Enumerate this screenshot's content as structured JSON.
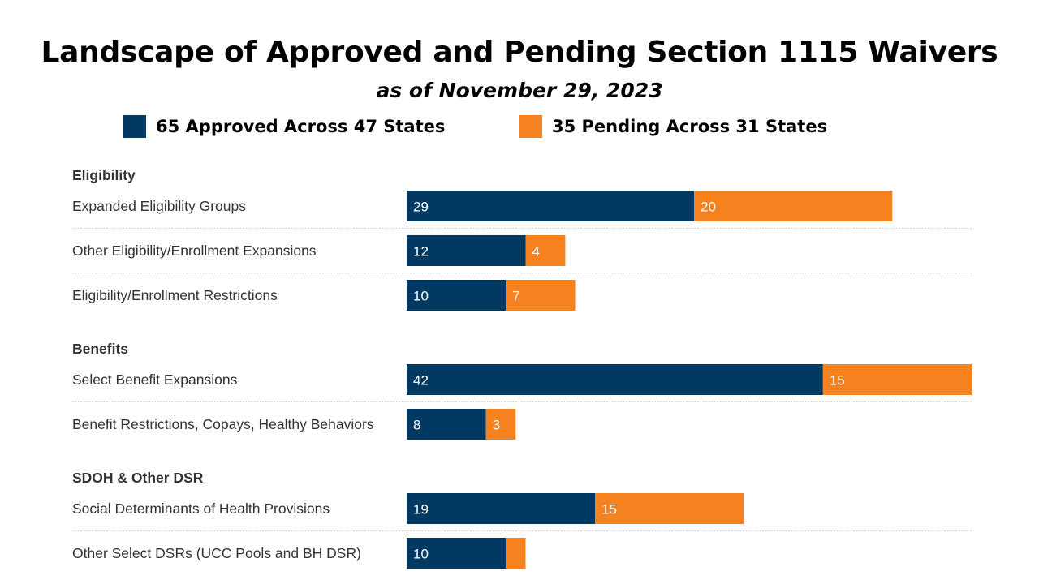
{
  "title": "Landscape of Approved and Pending Section 1115 Waivers",
  "subtitle": "as of November 29, 2023",
  "legend": {
    "approved": {
      "label": "65 Approved Across 47 States",
      "color": "#003a63"
    },
    "pending": {
      "label": "35 Pending Across 31 States",
      "color": "#f5821f"
    }
  },
  "chart_data": {
    "type": "bar",
    "orientation": "horizontal",
    "stacked": true,
    "xlim": [
      0,
      57
    ],
    "grid": false,
    "legend_position": "top",
    "groups": [
      {
        "name": "Eligibility",
        "categories": [
          "Expanded Eligibility Groups",
          "Other Eligibility/Enrollment Expansions",
          "Eligibility/Enrollment Restrictions"
        ]
      },
      {
        "name": "Benefits",
        "categories": [
          "Select Benefit Expansions",
          "Benefit Restrictions, Copays, Healthy Behaviors"
        ]
      },
      {
        "name": "SDOH & Other DSR",
        "categories": [
          "Social Determinants of Health Provisions",
          "Other Select DSRs (UCC Pools and BH DSR)"
        ]
      }
    ],
    "series": [
      {
        "name": "65 Approved Across 47 States",
        "values": [
          29,
          12,
          10,
          42,
          8,
          19,
          10
        ],
        "labels": [
          "29",
          "12",
          "10",
          "42",
          "8",
          "19",
          "10"
        ]
      },
      {
        "name": "35 Pending Across 31 States",
        "values": [
          20,
          4,
          7,
          15,
          3,
          15,
          2
        ],
        "labels": [
          "20",
          "4",
          "7",
          "15",
          "3",
          "15",
          ""
        ]
      }
    ]
  }
}
